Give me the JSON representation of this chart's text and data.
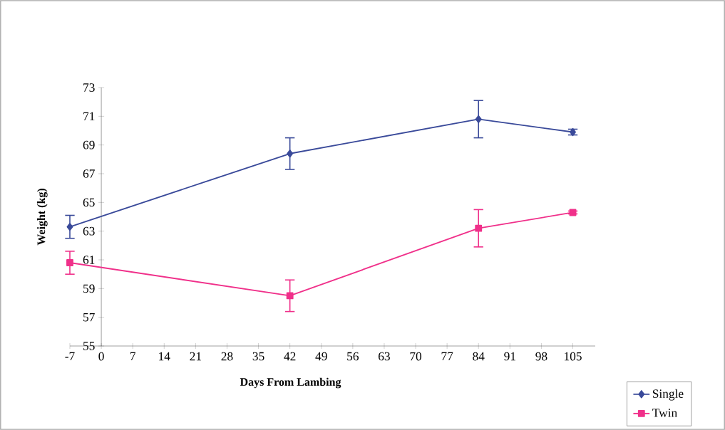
{
  "chart_data": {
    "type": "line",
    "xlabel": "Days From Lambing",
    "ylabel": "Weight (kg)",
    "x": [
      -7,
      42,
      84,
      105
    ],
    "series": [
      {
        "name": "Single",
        "color": "#3a4a9a",
        "marker": "diamond",
        "values": [
          63.3,
          68.4,
          70.8,
          69.9
        ],
        "errors": [
          0.8,
          1.1,
          1.3,
          0.2
        ]
      },
      {
        "name": "Twin",
        "color": "#f0308a",
        "marker": "square",
        "values": [
          60.8,
          58.5,
          63.2,
          64.3
        ],
        "errors": [
          0.8,
          1.1,
          1.3,
          0.1
        ]
      }
    ],
    "xlim": [
      -7,
      110
    ],
    "ylim": [
      55,
      73
    ],
    "xticks": [
      -7,
      0,
      7,
      14,
      21,
      28,
      35,
      42,
      49,
      56,
      63,
      70,
      77,
      84,
      91,
      98,
      105
    ],
    "yticks": [
      55,
      57,
      59,
      61,
      63,
      65,
      67,
      69,
      71,
      73
    ],
    "grid": false,
    "legend": "bottom right",
    "line_style": "solid"
  }
}
